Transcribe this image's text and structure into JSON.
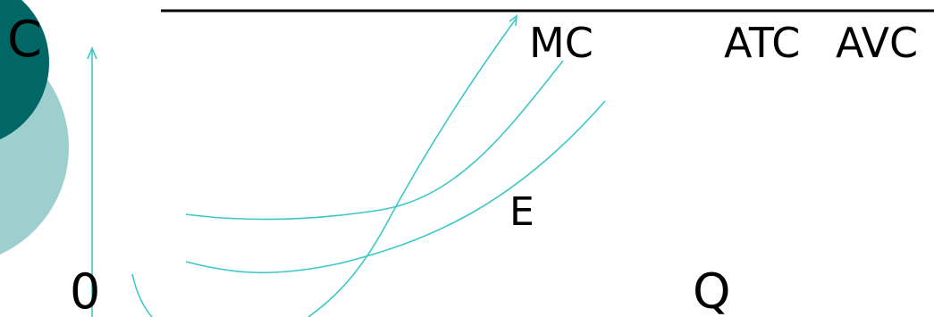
{
  "labels": {
    "y_axis": "C",
    "origin": "0",
    "x_axis": "Q",
    "mc": "MC",
    "atc": "ATC",
    "avc": "AVC",
    "point_e": "E"
  },
  "colors": {
    "curve": "#3cc8c8",
    "axis": "#3cc8c8",
    "title_rule": "#000000",
    "accent_dark": "#006666",
    "accent_light": "#9ecfcf",
    "text": "#000000"
  },
  "decorations": {
    "corner_circles": "dark-teal and light-teal overlapping circles"
  }
}
